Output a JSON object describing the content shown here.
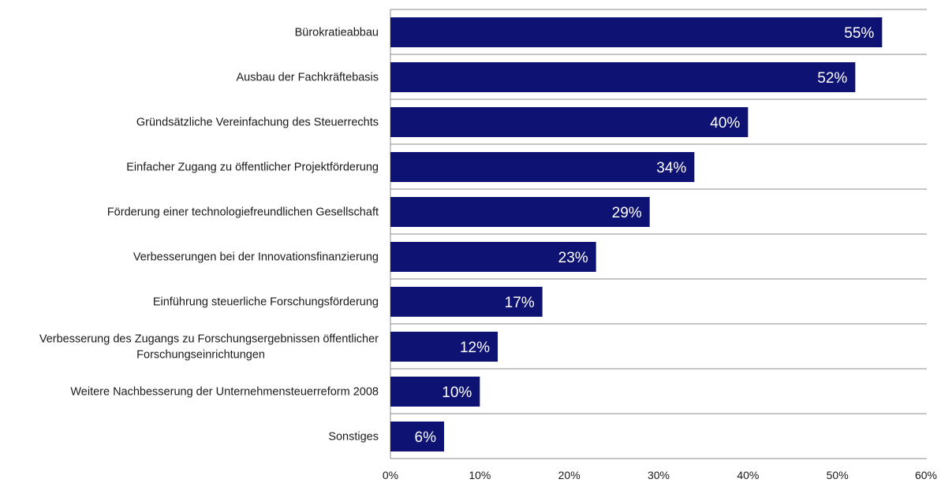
{
  "chart_data": {
    "type": "bar",
    "orientation": "horizontal",
    "categories": [
      [
        "Bürokratieabbau"
      ],
      [
        "Ausbau der Fachkräftebasis"
      ],
      [
        "Gründsätzliche Vereinfachung des Steuerrechts"
      ],
      [
        "Einfacher Zugang zu öffentlicher Projektförderung"
      ],
      [
        "Förderung einer technologiefreundlichen Gesellschaft"
      ],
      [
        "Verbesserungen bei der Innovationsfinanzierung"
      ],
      [
        "Einführung steuerliche Forschungsförderung"
      ],
      [
        "Verbesserung des Zugangs zu Forschungsergebnissen öffentlicher",
        "Forschungseinrichtungen"
      ],
      [
        "Weitere Nachbesserung der Unternehmensteuerreform 2008"
      ],
      [
        "Sonstiges"
      ]
    ],
    "values": [
      55,
      52,
      40,
      34,
      29,
      23,
      17,
      12,
      10,
      6
    ],
    "value_labels": [
      "55%",
      "52%",
      "40%",
      "34%",
      "29%",
      "23%",
      "17%",
      "12%",
      "10%",
      "6%"
    ],
    "x_ticks": [
      0,
      10,
      20,
      30,
      40,
      50,
      60
    ],
    "x_tick_labels": [
      "0%",
      "10%",
      "20%",
      "30%",
      "40%",
      "50%",
      "60%"
    ],
    "xlim": [
      0,
      60
    ],
    "title": "",
    "xlabel": "",
    "ylabel": "",
    "grid": "horizontal separators between categories",
    "legend": "none",
    "colors": {
      "bar": "#0d1273",
      "gridline": "#8c8c8c",
      "value_text": "#ffffff"
    }
  }
}
